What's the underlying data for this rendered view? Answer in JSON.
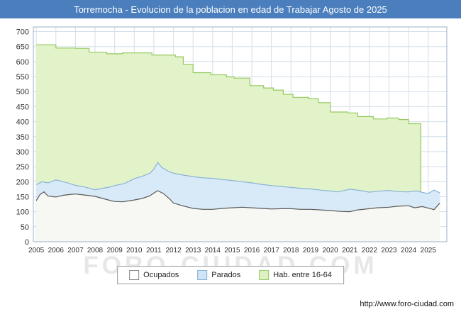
{
  "title_bar": {
    "title": "Torremocha - Evolucion de la poblacion en edad de Trabajar Agosto de 2025",
    "bg": "#4a7ebd"
  },
  "watermark": "FORO-CIUDAD.COM",
  "footer": {
    "url": "http://www.foro-ciudad.com"
  },
  "legend": {
    "items": [
      {
        "label": "Ocupados",
        "fill": "#ffffff",
        "stroke": "#888888"
      },
      {
        "label": "Parados",
        "fill": "#cfe4f6",
        "stroke": "#88b3d8"
      },
      {
        "label": "Hab. entre 16-64",
        "fill": "#dff1c4",
        "stroke": "#98cb66"
      }
    ]
  },
  "chart_data": {
    "type": "area",
    "title": "Torremocha - Evolucion de la poblacion en edad de Trabajar Agosto de 2025",
    "xlabel": "",
    "ylabel": "",
    "xlim": [
      2004.85,
      2025.95
    ],
    "ylim": [
      0,
      700
    ],
    "y_tick_step": 50,
    "x_ticks": [
      2005,
      2006,
      2007,
      2008,
      2009,
      2010,
      2011,
      2012,
      2013,
      2014,
      2015,
      2016,
      2017,
      2018,
      2019,
      2020,
      2021,
      2022,
      2023,
      2024,
      2025
    ],
    "grid": true,
    "legend_position": "bottom",
    "colors": {
      "grid": "#d4deea",
      "border": "#9bb0c4"
    },
    "series": [
      {
        "name": "Hab. entre 16-64",
        "fill": "#e3f3c9",
        "stroke": "#94c95e",
        "step": true,
        "drop_end": true,
        "points": [
          [
            2005,
            656
          ],
          [
            2006,
            645
          ],
          [
            2007,
            644
          ],
          [
            2007.7,
            631
          ],
          [
            2008.6,
            626
          ],
          [
            2009.4,
            629
          ],
          [
            2010.9,
            622
          ],
          [
            2012.1,
            616
          ],
          [
            2012.5,
            591
          ],
          [
            2013,
            563
          ],
          [
            2013.9,
            556
          ],
          [
            2014.7,
            549
          ],
          [
            2015.1,
            545
          ],
          [
            2015.9,
            520
          ],
          [
            2016.6,
            512
          ],
          [
            2017.1,
            505
          ],
          [
            2017.6,
            491
          ],
          [
            2018.1,
            481
          ],
          [
            2018.9,
            476
          ],
          [
            2019.4,
            463
          ],
          [
            2020,
            432
          ],
          [
            2020.9,
            429
          ],
          [
            2021.4,
            417
          ],
          [
            2022.2,
            409
          ],
          [
            2022.9,
            412
          ],
          [
            2023.5,
            407
          ],
          [
            2024,
            393
          ],
          [
            2024.62,
            393
          ]
        ]
      },
      {
        "name": "Parados",
        "fill": "#d8e9f7",
        "stroke": "#88b3d8",
        "points": [
          [
            2005,
            190
          ],
          [
            2005.3,
            200
          ],
          [
            2005.6,
            196
          ],
          [
            2006,
            206
          ],
          [
            2006.4,
            200
          ],
          [
            2006.8,
            192
          ],
          [
            2007,
            188
          ],
          [
            2007.5,
            182
          ],
          [
            2008,
            173
          ],
          [
            2008.4,
            178
          ],
          [
            2008.8,
            183
          ],
          [
            2009,
            187
          ],
          [
            2009.5,
            194
          ],
          [
            2010,
            210
          ],
          [
            2010.4,
            218
          ],
          [
            2010.8,
            228
          ],
          [
            2011,
            242
          ],
          [
            2011.2,
            264
          ],
          [
            2011.4,
            248
          ],
          [
            2011.7,
            236
          ],
          [
            2012,
            228
          ],
          [
            2012.5,
            222
          ],
          [
            2013,
            217
          ],
          [
            2013.5,
            213
          ],
          [
            2014,
            211
          ],
          [
            2014.5,
            207
          ],
          [
            2015,
            204
          ],
          [
            2015.5,
            200
          ],
          [
            2016,
            196
          ],
          [
            2016.5,
            191
          ],
          [
            2017,
            187
          ],
          [
            2017.5,
            184
          ],
          [
            2018,
            181
          ],
          [
            2018.5,
            178
          ],
          [
            2019,
            176
          ],
          [
            2019.5,
            172
          ],
          [
            2020,
            169
          ],
          [
            2020.4,
            166
          ],
          [
            2020.8,
            172
          ],
          [
            2021,
            175
          ],
          [
            2021.5,
            171
          ],
          [
            2022,
            165
          ],
          [
            2022.4,
            168
          ],
          [
            2023,
            171
          ],
          [
            2023.4,
            167
          ],
          [
            2024,
            166
          ],
          [
            2024.4,
            169
          ],
          [
            2024.8,
            163
          ],
          [
            2025,
            161
          ],
          [
            2025.3,
            172
          ],
          [
            2025.6,
            163
          ]
        ]
      },
      {
        "name": "Ocupados",
        "fill": "#f7f7f3",
        "stroke": "#5a5a5a",
        "points": [
          [
            2005,
            137
          ],
          [
            2005.2,
            158
          ],
          [
            2005.4,
            166
          ],
          [
            2005.6,
            152
          ],
          [
            2006,
            149
          ],
          [
            2006.4,
            155
          ],
          [
            2006.8,
            158
          ],
          [
            2007,
            159
          ],
          [
            2007.4,
            156
          ],
          [
            2008,
            151
          ],
          [
            2008.4,
            144
          ],
          [
            2008.8,
            137
          ],
          [
            2009,
            134
          ],
          [
            2009.4,
            133
          ],
          [
            2009.8,
            137
          ],
          [
            2010,
            139
          ],
          [
            2010.4,
            144
          ],
          [
            2010.8,
            153
          ],
          [
            2011,
            162
          ],
          [
            2011.2,
            170
          ],
          [
            2011.5,
            160
          ],
          [
            2011.8,
            143
          ],
          [
            2012,
            129
          ],
          [
            2012.4,
            121
          ],
          [
            2013,
            111
          ],
          [
            2013.5,
            108
          ],
          [
            2014,
            108
          ],
          [
            2014.5,
            111
          ],
          [
            2015,
            113
          ],
          [
            2015.5,
            115
          ],
          [
            2016,
            113
          ],
          [
            2016.5,
            111
          ],
          [
            2017,
            109
          ],
          [
            2017.5,
            110
          ],
          [
            2018,
            110
          ],
          [
            2018.5,
            108
          ],
          [
            2019,
            108
          ],
          [
            2019.5,
            106
          ],
          [
            2020,
            104
          ],
          [
            2020.5,
            101
          ],
          [
            2021,
            100
          ],
          [
            2021.4,
            106
          ],
          [
            2022,
            110
          ],
          [
            2022.4,
            113
          ],
          [
            2023,
            115
          ],
          [
            2023.4,
            118
          ],
          [
            2024,
            120
          ],
          [
            2024.3,
            113
          ],
          [
            2024.7,
            117
          ],
          [
            2025,
            112
          ],
          [
            2025.3,
            107
          ],
          [
            2025.6,
            129
          ]
        ]
      }
    ]
  }
}
